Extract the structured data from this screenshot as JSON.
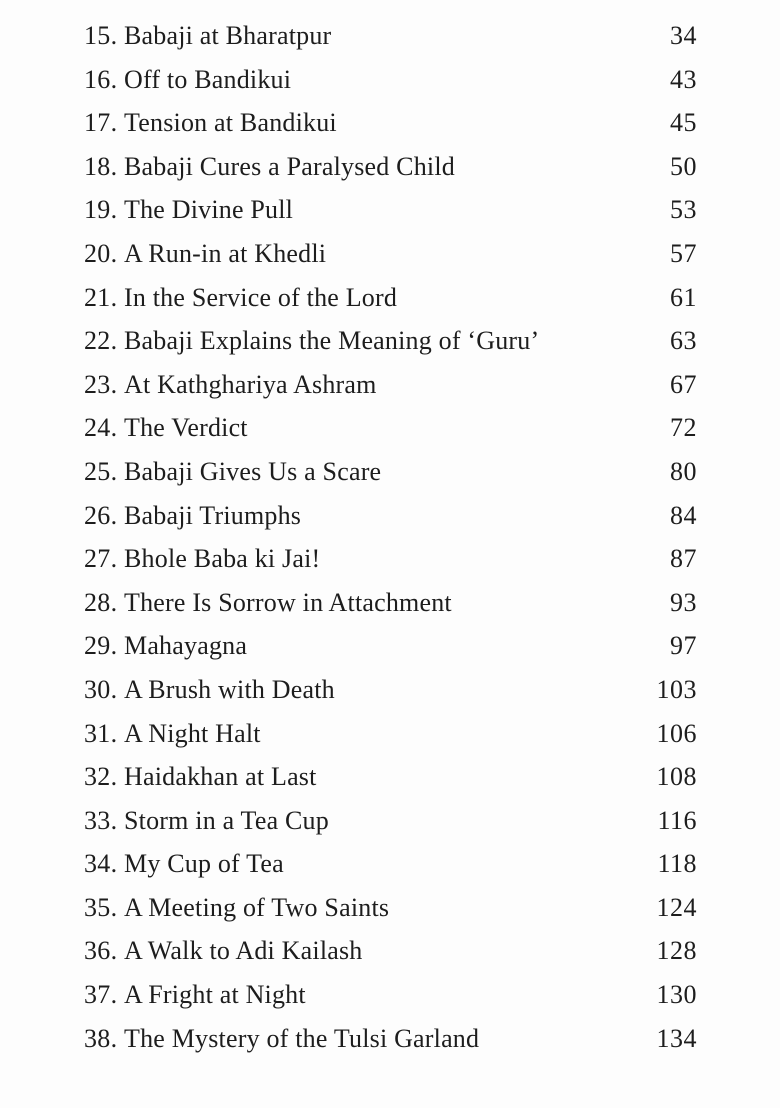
{
  "page": {
    "kind": "book-table-of-contents"
  },
  "colors": {
    "background": "#fdfdfd",
    "text": "#1d1d1d"
  },
  "toc": {
    "entries": [
      {
        "number": "15.",
        "title": "Babaji at Bharatpur",
        "page": "34"
      },
      {
        "number": "16.",
        "title": "Off to Bandikui",
        "page": "43"
      },
      {
        "number": "17.",
        "title": "Tension at Bandikui",
        "page": "45"
      },
      {
        "number": "18.",
        "title": "Babaji Cures a Paralysed Child",
        "page": "50"
      },
      {
        "number": "19.",
        "title": "The Divine Pull",
        "page": "53"
      },
      {
        "number": "20.",
        "title": "A Run-in at Khedli",
        "page": "57"
      },
      {
        "number": "21.",
        "title": "In the Service of the Lord",
        "page": "61"
      },
      {
        "number": "22.",
        "title": "Babaji Explains the Meaning of ‘Guru’",
        "page": "63"
      },
      {
        "number": "23.",
        "title": "At Kathghariya Ashram",
        "page": "67"
      },
      {
        "number": "24.",
        "title": "The Verdict",
        "page": "72"
      },
      {
        "number": "25.",
        "title": "Babaji Gives Us a Scare",
        "page": "80"
      },
      {
        "number": "26.",
        "title": "Babaji Triumphs",
        "page": "84"
      },
      {
        "number": "27.",
        "title": "Bhole Baba ki Jai!",
        "page": "87"
      },
      {
        "number": "28.",
        "title": "There Is Sorrow in Attachment",
        "page": "93"
      },
      {
        "number": "29.",
        "title": "Mahayagna",
        "page": "97"
      },
      {
        "number": "30.",
        "title": "A Brush with Death",
        "page": "103"
      },
      {
        "number": "31.",
        "title": "A Night Halt",
        "page": "106"
      },
      {
        "number": "32.",
        "title": "Haidakhan at Last",
        "page": "108"
      },
      {
        "number": "33.",
        "title": "Storm in a Tea Cup",
        "page": "116"
      },
      {
        "number": "34.",
        "title": "My Cup of Tea",
        "page": "118"
      },
      {
        "number": "35.",
        "title": "A Meeting of Two Saints",
        "page": "124"
      },
      {
        "number": "36.",
        "title": "A Walk to Adi Kailash",
        "page": "128"
      },
      {
        "number": "37.",
        "title": "A Fright at Night",
        "page": "130"
      },
      {
        "number": "38.",
        "title": "The Mystery of the Tulsi Garland",
        "page": "134"
      }
    ]
  }
}
